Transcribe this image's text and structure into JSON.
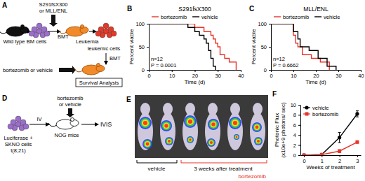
{
  "chart_data": [
    {
      "panel": "B",
      "type": "step",
      "title": "S291fsX300",
      "xlabel": "Time (d)",
      "ylabel": "Percent viable",
      "xlim": [
        0,
        40
      ],
      "xticks": [
        0,
        10,
        20,
        30,
        40
      ],
      "ylim": [
        0,
        100
      ],
      "yticks": [
        0,
        50,
        100
      ],
      "legend": "top",
      "annotations": [
        "n=12",
        "P = 0.0001"
      ],
      "series": [
        {
          "name": "bortezomib",
          "color": "#e8332a",
          "x": [
            0,
            20,
            24,
            27,
            28,
            29,
            30,
            31,
            33,
            35,
            38
          ],
          "values": [
            100,
            92,
            83,
            75,
            67,
            58,
            50,
            33,
            25,
            17,
            0
          ]
        },
        {
          "name": "vehicle",
          "color": "#000000",
          "x": [
            0,
            17,
            20,
            22,
            24,
            25,
            26,
            27,
            28,
            29
          ],
          "values": [
            100,
            92,
            83,
            75,
            67,
            58,
            42,
            25,
            8,
            0
          ]
        }
      ]
    },
    {
      "panel": "C",
      "type": "step",
      "title": "MLL/ENL",
      "xlabel": "Time (d)",
      "ylabel": "Percent viable",
      "xlim": [
        0,
        40
      ],
      "xticks": [
        0,
        10,
        20,
        30,
        40
      ],
      "ylim": [
        0,
        100
      ],
      "yticks": [
        0,
        50,
        100
      ],
      "legend": "top",
      "annotations": [
        "n=12",
        "P = 0.6662"
      ],
      "series": [
        {
          "name": "bortezomib",
          "color": "#e8332a",
          "x": [
            0,
            10,
            11,
            12,
            14,
            18,
            22,
            26
          ],
          "values": [
            100,
            75,
            58,
            50,
            33,
            25,
            17,
            0
          ]
        },
        {
          "name": "vehicle",
          "color": "#000000",
          "x": [
            0,
            10,
            12,
            13,
            17,
            21,
            25,
            29
          ],
          "values": [
            100,
            83,
            67,
            50,
            42,
            25,
            8,
            0
          ]
        }
      ]
    },
    {
      "panel": "F",
      "type": "line",
      "xlabel": "Weeks of treatment",
      "ylabel": [
        "Photonic Flux",
        "(x10e+9 photons/ sec)"
      ],
      "xlim": [
        -0.2,
        3.2
      ],
      "xticks": [
        0,
        1,
        2,
        3
      ],
      "ylim": [
        0,
        10
      ],
      "yticks": [
        0,
        2,
        4,
        6,
        8,
        10
      ],
      "legend": "upper left",
      "series": [
        {
          "name": "vehicle",
          "color": "#000000",
          "marker": "circle",
          "x": [
            0,
            1,
            2,
            3
          ],
          "values": [
            0,
            0.1,
            3.5,
            8.2
          ],
          "errors": [
            0,
            0.1,
            1,
            0.6
          ]
        },
        {
          "name": "bortezomib",
          "color": "#e8332a",
          "marker": "square",
          "x": [
            0,
            1,
            2,
            3
          ],
          "values": [
            0,
            0.1,
            0.8,
            2.6
          ],
          "errors": [
            0,
            0.05,
            0.3,
            0.2
          ]
        }
      ]
    }
  ],
  "diagram_a": {
    "panel": "A",
    "wild_type": "Wild type",
    "bm_cells": "BM cells",
    "vector": [
      "S291fsX300",
      "or MLL/ENL"
    ],
    "bmt": "BMT",
    "leukemia": "Leukemia",
    "leukemic_cells": "leukemic cells",
    "bmt_2": "BMT",
    "treatment": "bortezomib or vehicle",
    "survival": "Survival Analysis"
  },
  "diagram_d": {
    "panel": "D",
    "cells": [
      "Luciferase +",
      "SKNO cells",
      "t(8;21)"
    ],
    "route": "IV",
    "mice": "NOG mice",
    "treatment": [
      "bortezomib",
      "or vehicle"
    ],
    "imaging": "IVIS"
  },
  "image_e": {
    "panel": "E",
    "vehicle": "vehicle",
    "time": "3 weeks after treatment",
    "bortezomib": "bortezomib"
  }
}
